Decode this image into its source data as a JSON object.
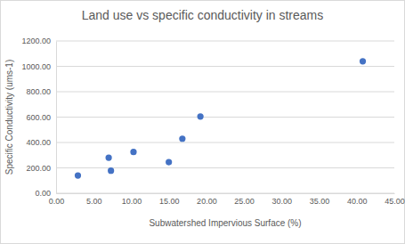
{
  "chart_data": {
    "type": "scatter",
    "title": "Land use vs specific conductivity in streams",
    "x_label": "Subwatershed Impervious Surface (%)",
    "y_label": "Specific Conductivity (ums-1)",
    "x": [
      2.9,
      7.0,
      7.3,
      10.3,
      15.0,
      16.8,
      19.2,
      40.8
    ],
    "values": [
      140,
      280,
      178,
      325,
      245,
      430,
      605,
      1040
    ],
    "color": "#4472c4",
    "marker": "circle",
    "xlim": [
      0,
      45
    ],
    "xticks": [
      {
        "value": 0,
        "label": "0.00"
      },
      {
        "value": 5,
        "label": "5.00"
      },
      {
        "value": 10,
        "label": "10.00"
      },
      {
        "value": 15,
        "label": "15.00"
      },
      {
        "value": 20,
        "label": "20.00"
      },
      {
        "value": 25,
        "label": "25.00"
      },
      {
        "value": 30,
        "label": "30.00"
      },
      {
        "value": 35,
        "label": "35.00"
      },
      {
        "value": 40,
        "label": "40.00"
      },
      {
        "value": 45,
        "label": "45.00"
      }
    ],
    "ylim": [
      0,
      1200
    ],
    "yticks": [
      {
        "value": 0,
        "label": "0.00"
      },
      {
        "value": 200,
        "label": "200.00"
      },
      {
        "value": 400,
        "label": "400.00"
      },
      {
        "value": 600,
        "label": "600.00"
      },
      {
        "value": 800,
        "label": "800.00"
      },
      {
        "value": 1000,
        "label": "1000.00"
      },
      {
        "value": 1200,
        "label": "1200.00"
      }
    ],
    "grid": "y"
  }
}
